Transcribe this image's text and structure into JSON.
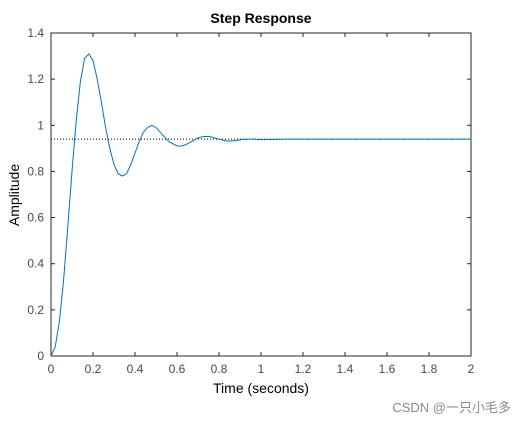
{
  "chart_data": {
    "type": "line",
    "title": "Step Response",
    "xlabel": "Time (seconds)",
    "ylabel": "Amplitude",
    "xlim": [
      0,
      2
    ],
    "ylim": [
      0,
      1.4
    ],
    "x_ticks": [
      0,
      0.2,
      0.4,
      0.6,
      0.8,
      1,
      1.2,
      1.4,
      1.6,
      1.8,
      2
    ],
    "x_tick_labels": [
      "0",
      "0.2",
      "0.4",
      "0.6",
      "0.8",
      "1",
      "1.2",
      "1.4",
      "1.6",
      "1.8",
      "2"
    ],
    "y_ticks": [
      0,
      0.2,
      0.4,
      0.6,
      0.8,
      1,
      1.2,
      1.4
    ],
    "y_tick_labels": [
      "0",
      "0.2",
      "0.4",
      "0.6",
      "0.8",
      "1",
      "1.2",
      "1.4"
    ],
    "grid": false,
    "series": [
      {
        "color": "#0072bd",
        "x": [
          0,
          0.02,
          0.04,
          0.06,
          0.08,
          0.1,
          0.12,
          0.14,
          0.16,
          0.18,
          0.2,
          0.22,
          0.24,
          0.26,
          0.28,
          0.3,
          0.32,
          0.34,
          0.36,
          0.38,
          0.4,
          0.42,
          0.44,
          0.46,
          0.48,
          0.5,
          0.52,
          0.54,
          0.56,
          0.58,
          0.6,
          0.62,
          0.64,
          0.66,
          0.68,
          0.7,
          0.72,
          0.74,
          0.76,
          0.78,
          0.8,
          0.82,
          0.84,
          0.86,
          0.88,
          0.9,
          0.92,
          0.94,
          0.96,
          0.98,
          1.0,
          1.04,
          1.08,
          1.12,
          1.16,
          1.2,
          1.3,
          1.4,
          1.6,
          1.8,
          2.0
        ],
        "y": [
          0,
          0.04,
          0.15,
          0.33,
          0.56,
          0.8,
          1.02,
          1.19,
          1.29,
          1.31,
          1.28,
          1.2,
          1.1,
          0.99,
          0.9,
          0.83,
          0.79,
          0.78,
          0.79,
          0.83,
          0.88,
          0.93,
          0.97,
          0.99,
          1.0,
          0.99,
          0.97,
          0.95,
          0.93,
          0.92,
          0.91,
          0.91,
          0.915,
          0.925,
          0.935,
          0.945,
          0.95,
          0.952,
          0.95,
          0.945,
          0.94,
          0.935,
          0.932,
          0.932,
          0.934,
          0.937,
          0.939,
          0.94,
          0.94,
          0.939,
          0.938,
          0.938,
          0.939,
          0.94,
          0.94,
          0.94,
          0.94,
          0.94,
          0.94,
          0.94,
          0.94
        ]
      }
    ],
    "steady_state": 0.94
  },
  "watermark": "CSDN @一只小毛多"
}
